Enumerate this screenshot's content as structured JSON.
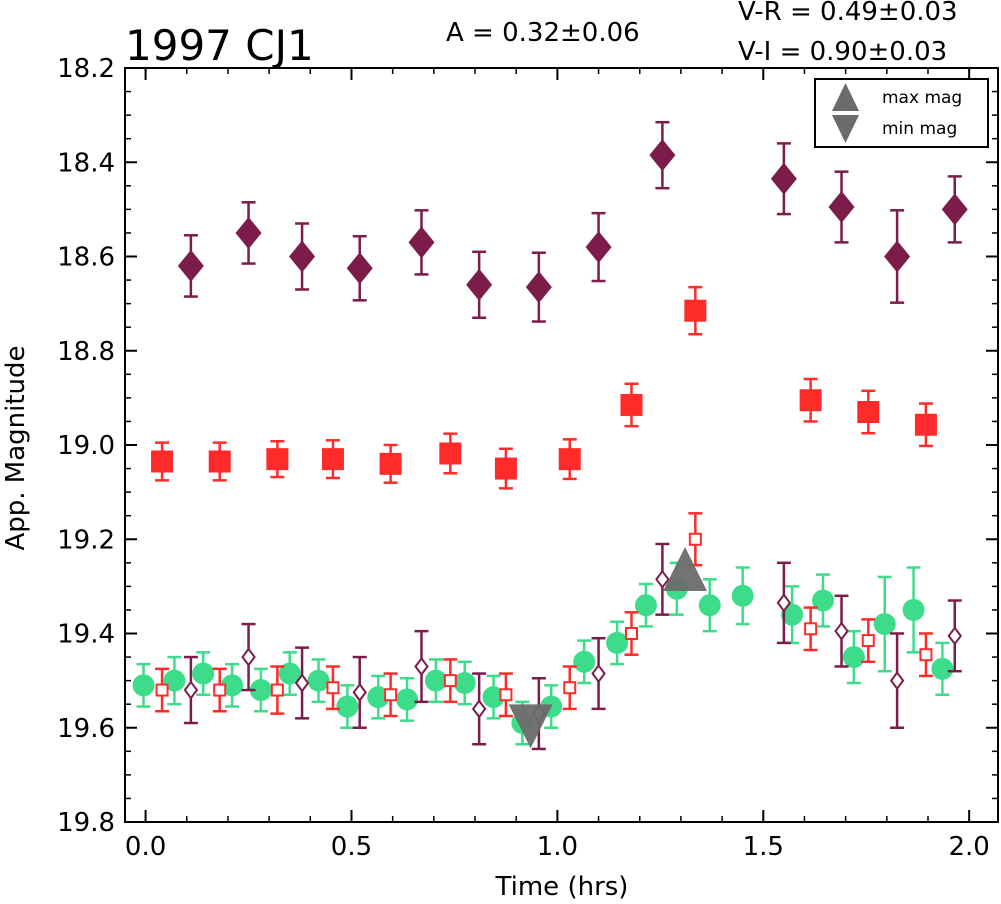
{
  "chart_data": {
    "type": "scatter",
    "title": "1997 CJ1",
    "amplitude_label": "A  = 0.32±0.06",
    "color_labels": [
      "V-R = 0.49±0.03",
      "V-I  = 0.90±0.03"
    ],
    "xlabel": "Time (hrs)",
    "ylabel": "App. Magnitude",
    "xlim": [
      -0.05,
      2.07
    ],
    "ylim": [
      19.8,
      18.2
    ],
    "y_inverted": true,
    "xticks": [
      "0.0",
      "0.5",
      "1.0",
      "1.5",
      "2.0"
    ],
    "yticks": [
      "18.2",
      "18.4",
      "18.6",
      "18.8",
      "19.0",
      "19.2",
      "19.4",
      "19.6",
      "19.8"
    ],
    "grid": false,
    "legend_position": "top-right",
    "legend": [
      {
        "label": "max mag",
        "marker": "triangle-up",
        "color": "#6b6b6b"
      },
      {
        "label": "min mag",
        "marker": "triangle-down",
        "color": "#6b6b6b"
      }
    ],
    "extrema": {
      "max": {
        "x": 1.31,
        "y": 19.28
      },
      "min": {
        "x": 0.935,
        "y": 19.58
      }
    },
    "series": [
      {
        "marker": "diamond-filled",
        "color": "#7b1c4a",
        "x": [
          0.11,
          0.25,
          0.38,
          0.52,
          0.67,
          0.81,
          0.955,
          1.1,
          1.255,
          1.55,
          1.69,
          1.825,
          1.965
        ],
        "y": [
          18.62,
          18.55,
          18.6,
          18.625,
          18.57,
          18.66,
          18.665,
          18.58,
          18.385,
          18.435,
          18.495,
          18.6,
          18.5
        ],
        "err": [
          0.065,
          0.065,
          0.07,
          0.068,
          0.068,
          0.07,
          0.073,
          0.072,
          0.07,
          0.075,
          0.075,
          0.098,
          0.07
        ]
      },
      {
        "marker": "square-filled",
        "color": "#ff2b2b",
        "x": [
          0.04,
          0.18,
          0.32,
          0.455,
          0.595,
          0.74,
          0.875,
          1.03,
          1.18,
          1.335,
          1.615,
          1.755,
          1.895
        ],
        "y": [
          19.035,
          19.035,
          19.03,
          19.03,
          19.04,
          19.018,
          19.05,
          19.03,
          18.915,
          18.715,
          18.905,
          18.93,
          18.957
        ],
        "err": [
          0.04,
          0.04,
          0.038,
          0.04,
          0.04,
          0.042,
          0.042,
          0.042,
          0.045,
          0.05,
          0.045,
          0.045,
          0.045
        ]
      },
      {
        "marker": "circle-filled",
        "color": "#3ddc8b",
        "x": [
          -0.005,
          0.07,
          0.14,
          0.21,
          0.28,
          0.35,
          0.42,
          0.49,
          0.565,
          0.635,
          0.705,
          0.775,
          0.845,
          0.915,
          0.985,
          1.065,
          1.145,
          1.215,
          1.29,
          1.37,
          1.45,
          1.57,
          1.645,
          1.72,
          1.795,
          1.865,
          1.935
        ],
        "y": [
          19.51,
          19.5,
          19.485,
          19.51,
          19.52,
          19.485,
          19.5,
          19.555,
          19.535,
          19.54,
          19.5,
          19.505,
          19.535,
          19.59,
          19.555,
          19.46,
          19.42,
          19.34,
          19.305,
          19.34,
          19.32,
          19.36,
          19.33,
          19.45,
          19.38,
          19.35,
          19.475
        ],
        "err": [
          0.045,
          0.05,
          0.045,
          0.045,
          0.045,
          0.045,
          0.045,
          0.045,
          0.045,
          0.045,
          0.045,
          0.045,
          0.045,
          0.045,
          0.045,
          0.045,
          0.045,
          0.045,
          0.055,
          0.055,
          0.06,
          0.06,
          0.055,
          0.055,
          0.1,
          0.09,
          0.055
        ]
      },
      {
        "marker": "square-open",
        "color": "#ff2b2b",
        "x": [
          0.04,
          0.18,
          0.32,
          0.455,
          0.595,
          0.74,
          0.875,
          1.03,
          1.18,
          1.335,
          1.615,
          1.755,
          1.895
        ],
        "y": [
          19.52,
          19.52,
          19.52,
          19.515,
          19.53,
          19.5,
          19.53,
          19.515,
          19.4,
          19.2,
          19.39,
          19.415,
          19.445
        ],
        "err": [
          0.045,
          0.045,
          0.05,
          0.045,
          0.045,
          0.045,
          0.045,
          0.045,
          0.045,
          0.055,
          0.045,
          0.045,
          0.045
        ]
      },
      {
        "marker": "diamond-open",
        "color": "#7b1c4a",
        "x": [
          0.11,
          0.25,
          0.38,
          0.52,
          0.67,
          0.81,
          0.955,
          1.1,
          1.255,
          1.55,
          1.69,
          1.825,
          1.965
        ],
        "y": [
          19.52,
          19.45,
          19.505,
          19.525,
          19.47,
          19.56,
          19.57,
          19.485,
          19.285,
          19.335,
          19.395,
          19.5,
          19.405
        ],
        "err": [
          0.07,
          0.07,
          0.075,
          0.075,
          0.075,
          0.075,
          0.075,
          0.075,
          0.075,
          0.085,
          0.075,
          0.1,
          0.075
        ]
      }
    ]
  }
}
